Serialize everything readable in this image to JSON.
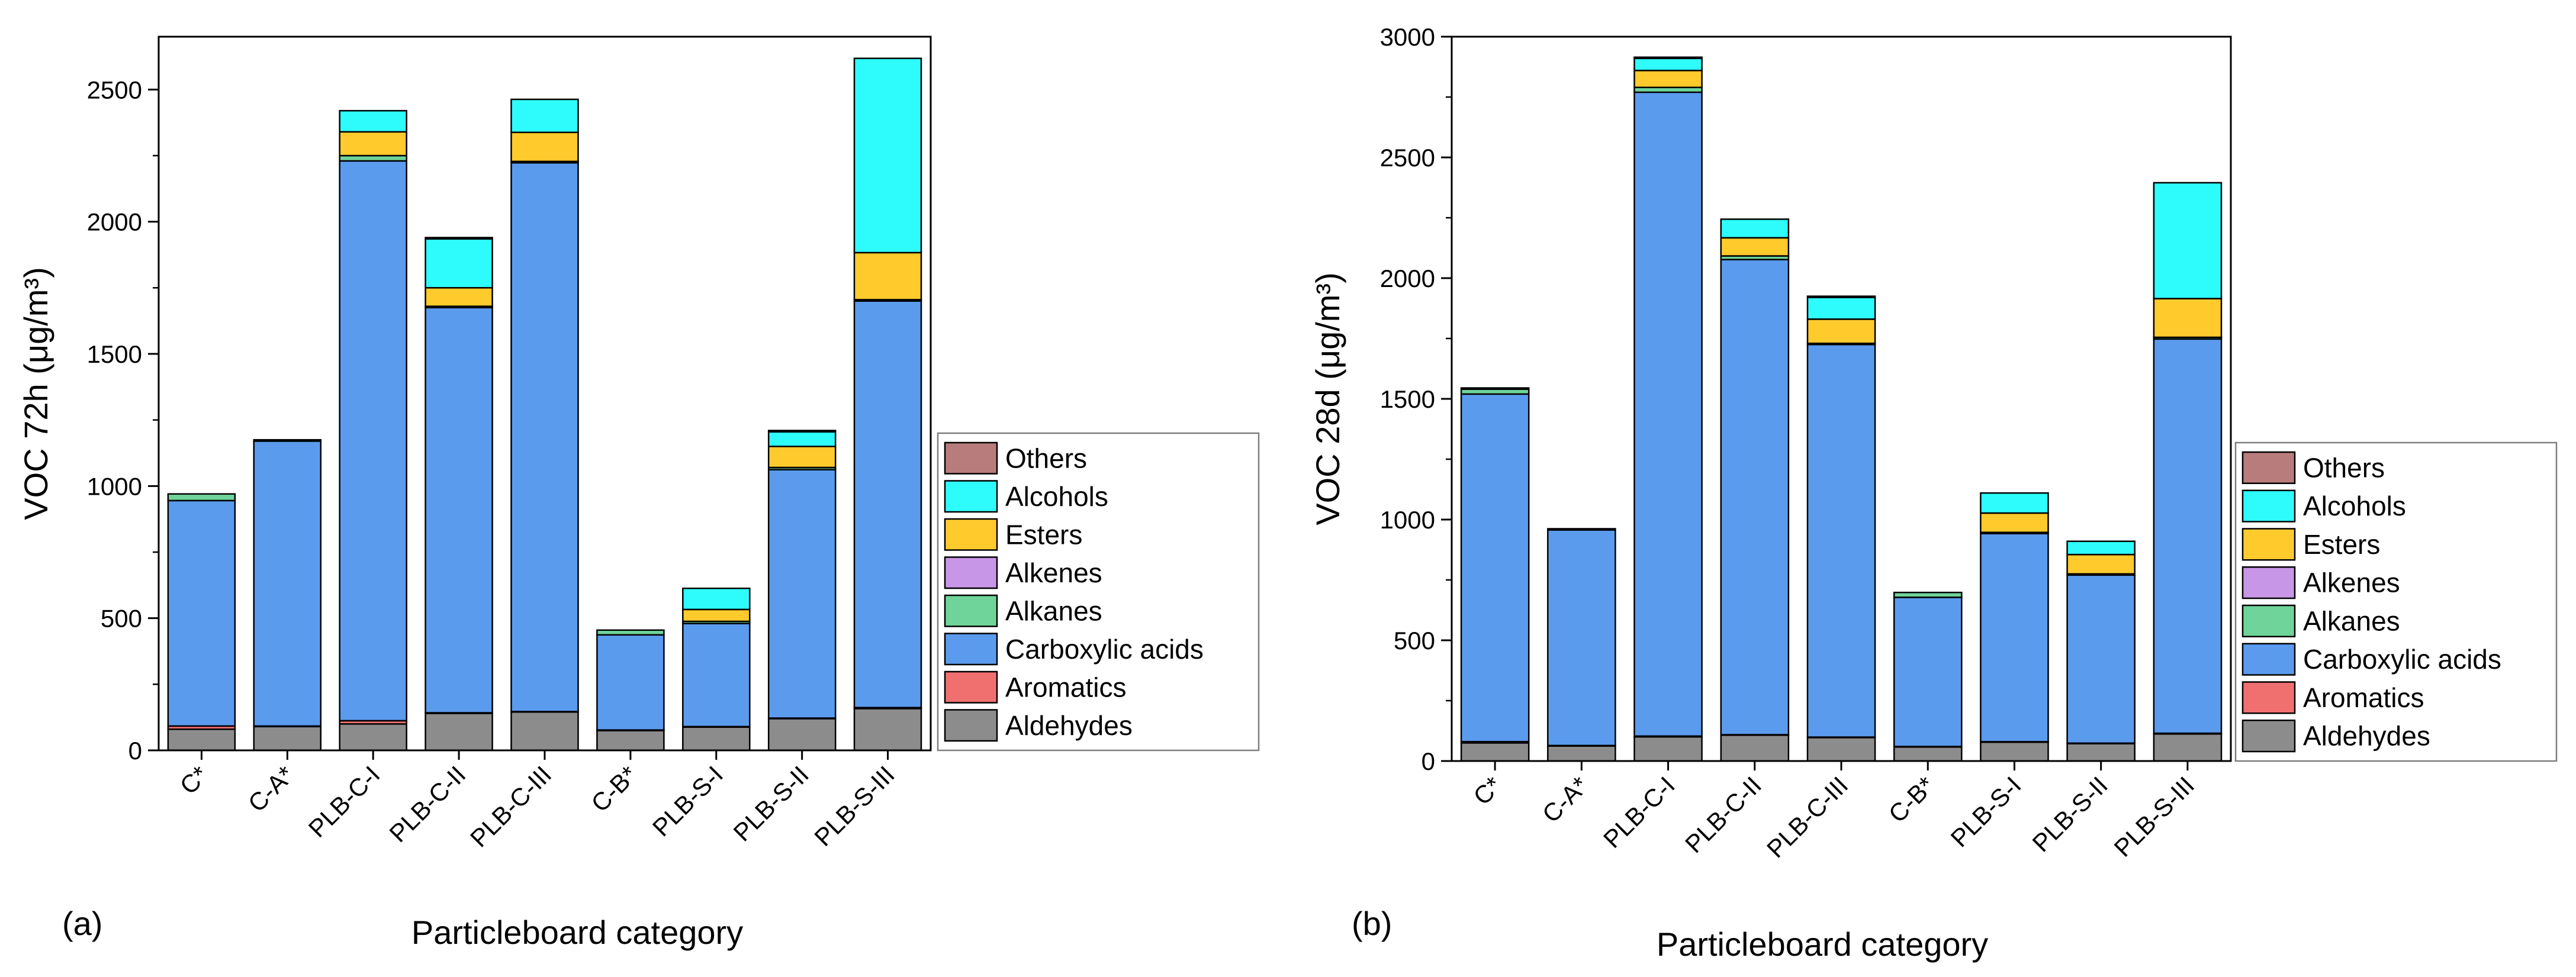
{
  "chart_data": [
    {
      "type": "bar",
      "stacked": true,
      "panel_label": "(a)",
      "xlabel": "Particleboard category",
      "ylabel": "VOC 72h (μg/m³)",
      "ylim": [
        0,
        2700
      ],
      "yticks": [
        0,
        500,
        1000,
        1500,
        2000,
        2500
      ],
      "categories": [
        "C*",
        "C-A*",
        "PLB-C-I",
        "PLB-C-II",
        "PLB-C-III",
        "C-B*",
        "PLB-S-I",
        "PLB-S-II",
        "PLB-S-III"
      ],
      "series": [
        {
          "name": "Aldehydes",
          "color": "#8c8c8c",
          "values": [
            80,
            90,
            100,
            140,
            145,
            75,
            88,
            120,
            158
          ]
        },
        {
          "name": "Aromatics",
          "color": "#f07070",
          "values": [
            12,
            2,
            12,
            2,
            2,
            2,
            2,
            2,
            4
          ]
        },
        {
          "name": "Carboxylic acids",
          "color": "#5b9bee",
          "values": [
            853,
            1078,
            2118,
            1533,
            2076,
            360,
            390,
            940,
            1538
          ]
        },
        {
          "name": "Alkanes",
          "color": "#6fd49a",
          "values": [
            25,
            5,
            20,
            5,
            5,
            18,
            8,
            8,
            5
          ]
        },
        {
          "name": "Alkenes",
          "color": "#c896e6",
          "values": [
            0,
            0,
            0,
            0,
            0,
            0,
            0,
            0,
            0
          ]
        },
        {
          "name": "Esters",
          "color": "#ffca2c",
          "values": [
            0,
            0,
            90,
            70,
            110,
            0,
            45,
            80,
            178
          ]
        },
        {
          "name": "Alcohols",
          "color": "#2efcfc",
          "values": [
            0,
            0,
            80,
            185,
            125,
            0,
            80,
            55,
            735
          ]
        },
        {
          "name": "Others",
          "color": "#b87c7c",
          "values": [
            0,
            0,
            0,
            5,
            0,
            0,
            0,
            5,
            0
          ]
        }
      ],
      "legend": [
        "Others",
        "Alcohols",
        "Esters",
        "Alkenes",
        "Alkanes",
        "Carboxylic acids",
        "Aromatics",
        "Aldehydes"
      ],
      "legend_position": "right"
    },
    {
      "type": "bar",
      "stacked": true,
      "panel_label": "(b)",
      "xlabel": "Particleboard category",
      "ylabel": "VOC 28d (μg/m³)",
      "ylim": [
        0,
        3000
      ],
      "yticks": [
        0,
        500,
        1000,
        1500,
        2000,
        2500,
        3000
      ],
      "categories": [
        "C*",
        "C-A*",
        "PLB-C-I",
        "PLB-C-II",
        "PLB-C-III",
        "C-B*",
        "PLB-S-I",
        "PLB-S-II",
        "PLB-S-III"
      ],
      "series": [
        {
          "name": "Aldehydes",
          "color": "#8c8c8c",
          "values": [
            75,
            62,
            100,
            107,
            97,
            58,
            78,
            72,
            112
          ]
        },
        {
          "name": "Aromatics",
          "color": "#f07070",
          "values": [
            5,
            2,
            3,
            2,
            2,
            2,
            2,
            2,
            3
          ]
        },
        {
          "name": "Carboxylic acids",
          "color": "#5b9bee",
          "values": [
            1440,
            893,
            2667,
            1968,
            1626,
            618,
            862,
            696,
            1633
          ]
        },
        {
          "name": "Alkanes",
          "color": "#6fd49a",
          "values": [
            20,
            5,
            20,
            15,
            5,
            20,
            5,
            5,
            7
          ]
        },
        {
          "name": "Alkenes",
          "color": "#c896e6",
          "values": [
            0,
            0,
            0,
            0,
            0,
            0,
            0,
            0,
            0
          ]
        },
        {
          "name": "Esters",
          "color": "#ffca2c",
          "values": [
            0,
            0,
            70,
            75,
            100,
            0,
            80,
            80,
            160
          ]
        },
        {
          "name": "Alcohols",
          "color": "#2efcfc",
          "values": [
            5,
            0,
            50,
            77,
            90,
            0,
            83,
            55,
            480
          ]
        },
        {
          "name": "Others",
          "color": "#b87c7c",
          "values": [
            0,
            0,
            5,
            0,
            5,
            0,
            0,
            0,
            0
          ]
        }
      ],
      "legend": [
        "Others",
        "Alcohols",
        "Esters",
        "Alkenes",
        "Alkanes",
        "Carboxylic acids",
        "Aromatics",
        "Aldehydes"
      ],
      "legend_position": "right"
    }
  ]
}
